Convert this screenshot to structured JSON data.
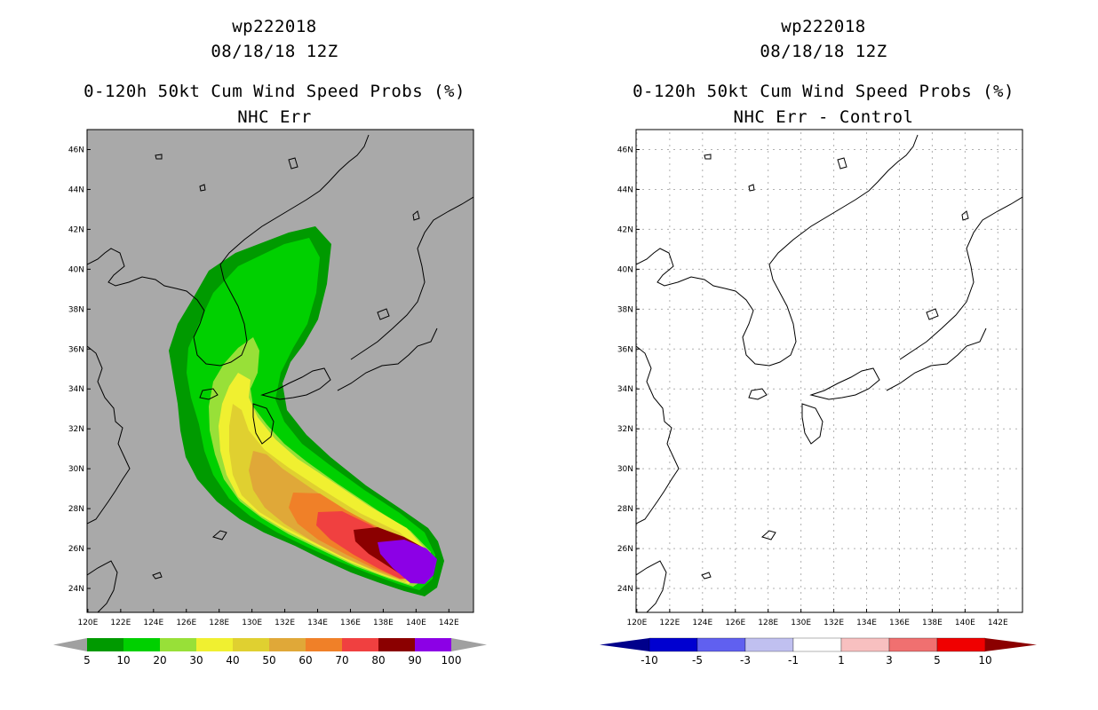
{
  "panels": [
    {
      "id": "left",
      "storm_id": "wp222018",
      "datetime": "08/18/18 12Z",
      "product": "0-120h 50kt Cum Wind Speed Probs (%)",
      "subtitle": "NHC Err",
      "colorbar": {
        "labels": [
          "5",
          "10",
          "20",
          "30",
          "40",
          "50",
          "60",
          "70",
          "80",
          "90",
          "100"
        ],
        "colors": [
          "#009a00",
          "#00d000",
          "#98e038",
          "#f0f030",
          "#e0d030",
          "#e0a838",
          "#f08028",
          "#f04040",
          "#8b0000",
          "#8c00e6"
        ],
        "end_color": "#a0a0a0"
      }
    },
    {
      "id": "right",
      "storm_id": "wp222018",
      "datetime": "08/18/18 12Z",
      "product": "0-120h 50kt Cum Wind Speed Probs (%)",
      "subtitle": "NHC Err - Control",
      "colorbar": {
        "labels": [
          "-10",
          "-5",
          "-3",
          "-1",
          "1",
          "3",
          "5",
          "10"
        ],
        "colors": [
          "#0000d0",
          "#6060f0",
          "#c0c0f0",
          "#ffffff",
          "#f8c0c0",
          "#f07070",
          "#f00000"
        ],
        "low_color": "#00008b",
        "high_color": "#8b0000"
      }
    }
  ],
  "map": {
    "lat_labels": [
      "46N",
      "44N",
      "42N",
      "40N",
      "38N",
      "36N",
      "34N",
      "32N",
      "30N",
      "28N",
      "26N",
      "24N"
    ],
    "lat_values": [
      46,
      44,
      42,
      40,
      38,
      36,
      34,
      32,
      30,
      28,
      26,
      24
    ],
    "lon_labels": [
      "120E",
      "122E",
      "124E",
      "126E",
      "128E",
      "130E",
      "132E",
      "134E",
      "136E",
      "138E",
      "140E",
      "142E"
    ],
    "lon_values": [
      120,
      122,
      124,
      126,
      128,
      130,
      132,
      134,
      136,
      138,
      140,
      142
    ],
    "ocean_color_left": "#a9a9a9",
    "background_right": "#ffffff"
  }
}
